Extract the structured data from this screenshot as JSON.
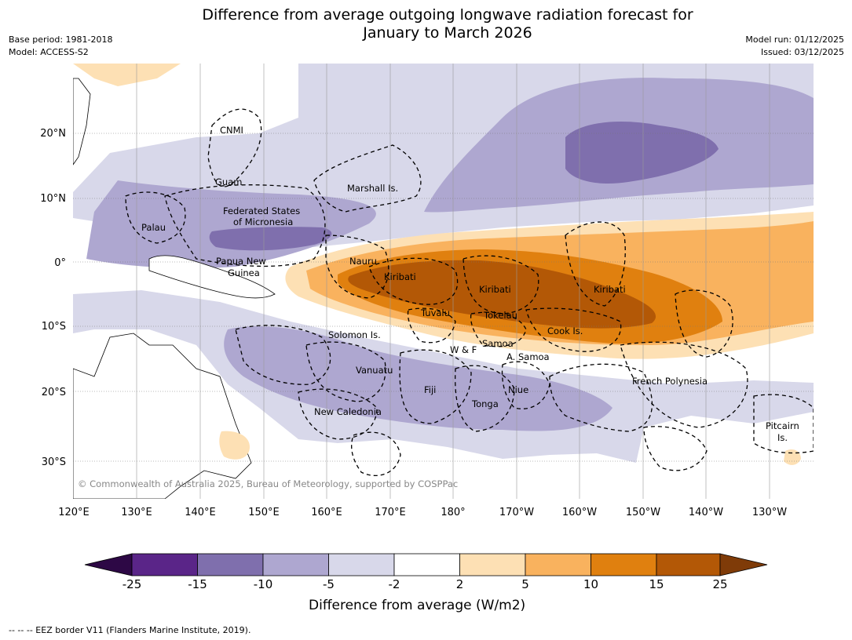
{
  "title_line1": "Difference from average outgoing longwave radiation forecast for",
  "title_line2": "January to March 2026",
  "meta_left": {
    "base_period": "Base period: 1981-2018",
    "model": "Model: ACCESS-S2"
  },
  "meta_right": {
    "model_run": "Model run: 01/12/2025",
    "issued": "Issued: 03/12/2025"
  },
  "map": {
    "lon_ticks": [
      "120°E",
      "130°E",
      "140°E",
      "150°E",
      "160°E",
      "170°E",
      "180°",
      "170°W",
      "160°W",
      "150°W",
      "140°W",
      "130°W"
    ],
    "lat_ticks": [
      "20°N",
      "10°N",
      "0°",
      "10°S",
      "20°S",
      "30°S"
    ],
    "copyright": "© Commonwealth of Australia 2025, Bureau of Meteorology, supported by COSPPac",
    "regions": {
      "cnmi": "CNMI",
      "guam": "Guam",
      "marshall": "Marshall Is.",
      "fsm1": "Federated States",
      "fsm2": "of Micronesia",
      "palau": "Palau",
      "png1": "Papua New",
      "png2": "Guinea",
      "nauru": "Nauru",
      "kiribati_w": "Kiribati",
      "kiribati_c": "Kiribati",
      "kiribati_e": "Kiribati",
      "tuvalu": "Tuvalu",
      "tokelau": "Tokelau",
      "cook": "Cook Is.",
      "solomon": "Solomon Is.",
      "wf": "W & F",
      "samoa": "Samoa",
      "asamoa": "A. Samoa",
      "vanuatu": "Vanuatu",
      "fiji": "Fiji",
      "niue": "Niue",
      "tonga": "Tonga",
      "new_caledonia": "New Caledonia",
      "french_polynesia": "French Polynesia",
      "pitcairn1": "Pitcairn",
      "pitcairn2": "Is."
    }
  },
  "colorbar": {
    "labels": [
      "-25",
      "-15",
      "-10",
      "-5",
      "-2",
      "2",
      "5",
      "10",
      "15",
      "25"
    ],
    "colors": {
      "below_min": "#2d0845",
      "bins": [
        "#5a2588",
        "#7f6fad",
        "#aea7d0",
        "#d8d8ea",
        "#ffffff",
        "#fde0b4",
        "#f9b25e",
        "#e0800f",
        "#b35806"
      ],
      "above_max": "#7f3b08"
    },
    "title": "Difference from average (W/m2)"
  },
  "footnote": "--  --  -- EEZ border V11 (Flanders Marine Institute, 2019)."
}
